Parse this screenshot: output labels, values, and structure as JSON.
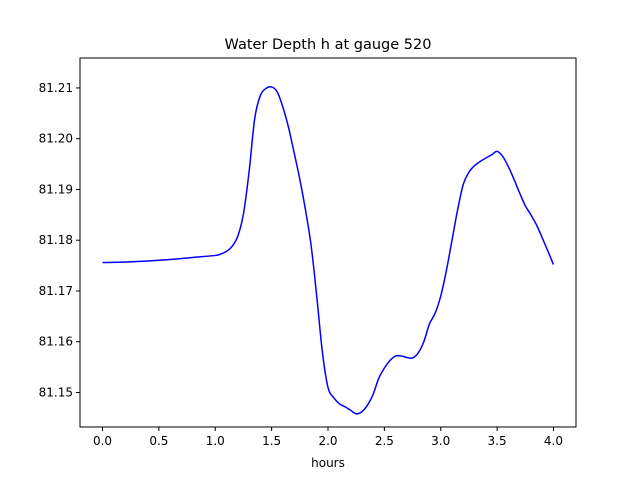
{
  "chart_data": {
    "type": "line",
    "title": "Water Depth h at gauge 520",
    "xlabel": "hours",
    "ylabel": "",
    "xlim": [
      -0.2,
      4.2
    ],
    "ylim": [
      81.1432,
      81.2159
    ],
    "x_ticks": [
      0.0,
      0.5,
      1.0,
      1.5,
      2.0,
      2.5,
      3.0,
      3.5,
      4.0
    ],
    "x_tick_labels": [
      "0.0",
      "0.5",
      "1.0",
      "1.5",
      "2.0",
      "2.5",
      "3.0",
      "3.5",
      "4.0"
    ],
    "y_ticks": [
      81.15,
      81.16,
      81.17,
      81.18,
      81.19,
      81.2,
      81.21
    ],
    "y_tick_labels": [
      "81.15",
      "81.16",
      "81.17",
      "81.18",
      "81.19",
      "81.20",
      "81.21"
    ],
    "grid": false,
    "line_color": "#0000ff",
    "series": [
      {
        "x": [
          0.0,
          0.2,
          0.4,
          0.6,
          0.8,
          1.0,
          1.05,
          1.1,
          1.15,
          1.2,
          1.25,
          1.3,
          1.35,
          1.4,
          1.45,
          1.5,
          1.55,
          1.6,
          1.65,
          1.7,
          1.75,
          1.8,
          1.85,
          1.9,
          1.95,
          2.0,
          2.05,
          2.1,
          2.15,
          2.2,
          2.25,
          2.3,
          2.35,
          2.4,
          2.45,
          2.5,
          2.55,
          2.6,
          2.65,
          2.7,
          2.75,
          2.8,
          2.85,
          2.9,
          2.95,
          3.0,
          3.05,
          3.1,
          3.15,
          3.2,
          3.25,
          3.3,
          3.35,
          3.4,
          3.45,
          3.5,
          3.55,
          3.6,
          3.65,
          3.7,
          3.75,
          3.8,
          3.85,
          3.9,
          3.95,
          4.0
        ],
        "y": [
          81.1756,
          81.1757,
          81.1759,
          81.1762,
          81.1766,
          81.177,
          81.1773,
          81.1778,
          81.1788,
          81.1808,
          81.1852,
          81.1935,
          81.204,
          81.2085,
          81.2099,
          81.2102,
          81.2092,
          81.2062,
          81.2022,
          81.1972,
          81.192,
          81.186,
          81.179,
          81.169,
          81.158,
          81.151,
          81.149,
          81.1478,
          81.1472,
          81.1465,
          81.1458,
          81.1462,
          81.1475,
          81.1496,
          81.1528,
          81.1548,
          81.1563,
          81.1572,
          81.1572,
          81.1569,
          81.1568,
          81.1578,
          81.16,
          81.1635,
          81.1656,
          81.169,
          81.174,
          81.18,
          81.186,
          81.191,
          81.1934,
          81.1947,
          81.1955,
          81.1962,
          81.1968,
          81.1975,
          81.1965,
          81.1945,
          81.192,
          81.1893,
          81.1868,
          81.185,
          81.183,
          81.1805,
          81.1779,
          81.1752
        ]
      }
    ]
  }
}
